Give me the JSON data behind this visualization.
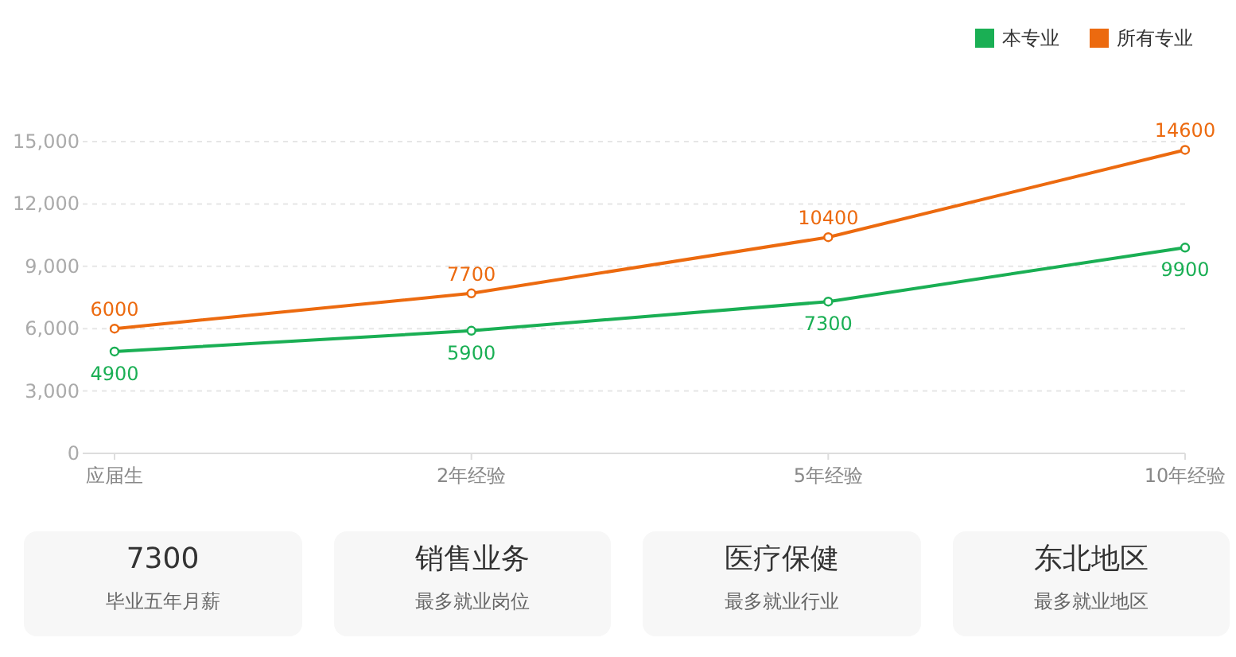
{
  "chart_data": [
    {
      "type": "line",
      "categories": [
        "应届生",
        "2年经验",
        "5年经验",
        "10年经验"
      ],
      "series": [
        {
          "name": "本专业",
          "color": "#1aaf54",
          "values": [
            4900,
            5900,
            7300,
            9900
          ]
        },
        {
          "name": "所有专业",
          "color": "#ec6a0f",
          "values": [
            6000,
            7700,
            10400,
            14600
          ]
        }
      ],
      "ylim": [
        0,
        15000
      ],
      "yticks": [
        0,
        {
          "value": 3000,
          "label": "3,000"
        },
        {
          "value": 6000,
          "label": "6,000"
        },
        {
          "value": 9000,
          "label": "9,000"
        },
        {
          "value": 12000,
          "label": "12,000"
        },
        {
          "value": 15000,
          "label": "15,000"
        }
      ],
      "grid": "y",
      "legend": "top right",
      "marker": "circle",
      "data_labels": true
    },
    {
      "type": "other",
      "annotations": [
        "7300",
        "毕业五年月薪",
        "销售业务",
        "最多就业岗位",
        "医疗保健",
        "最多就业行业",
        "东北地区",
        "最多就业地区"
      ]
    }
  ]
}
